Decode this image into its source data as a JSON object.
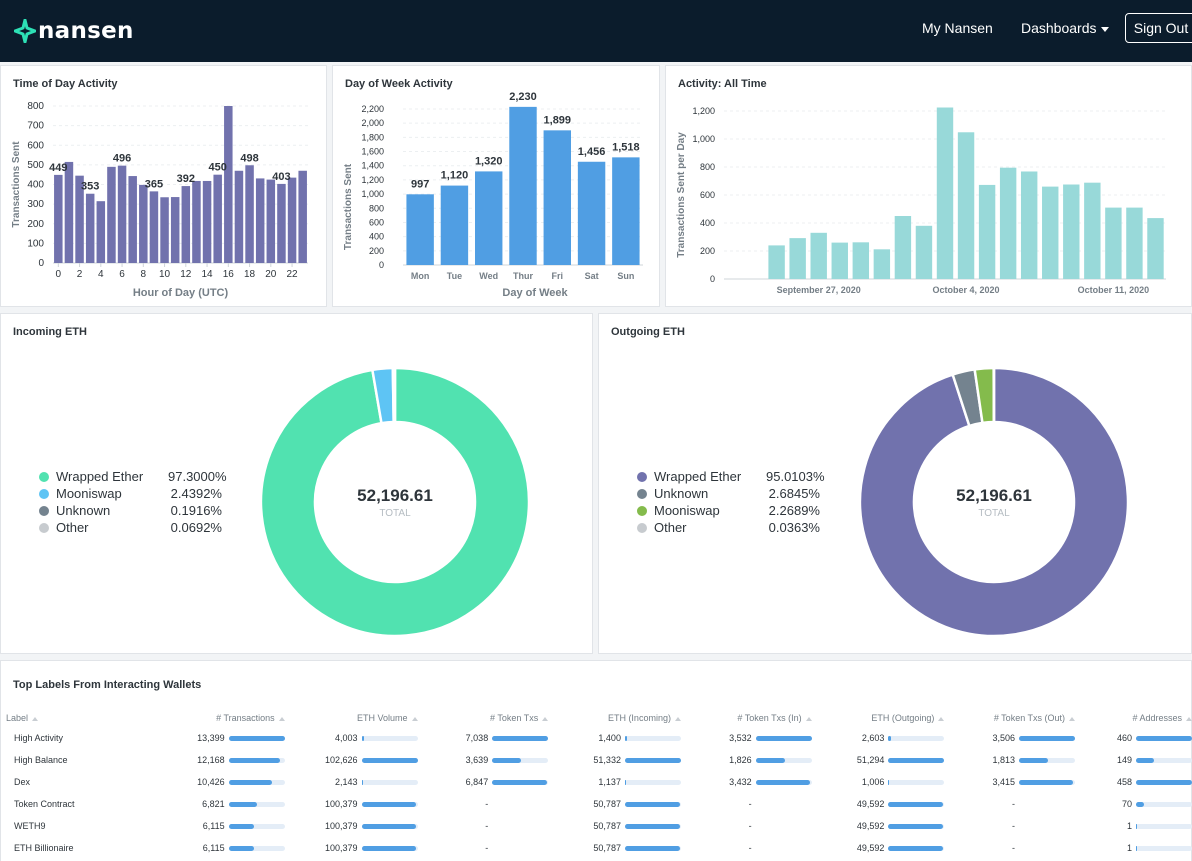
{
  "header": {
    "logo_text": "nansen",
    "nav": [
      {
        "label": "My Nansen"
      },
      {
        "label": "Dashboards"
      }
    ],
    "sign_out_label": "Sign Out"
  },
  "cards": {
    "time_of_day": {
      "title": "Time of Day Activity"
    },
    "day_of_week": {
      "title": "Day of Week Activity"
    },
    "all_time": {
      "title": "Activity: All Time"
    },
    "incoming": {
      "title": "Incoming ETH",
      "total": "52,196.61",
      "total_label": "TOTAL"
    },
    "outgoing": {
      "title": "Outgoing ETH",
      "total": "52,196.61",
      "total_label": "TOTAL"
    },
    "top_labels": {
      "title": "Top Labels From Interacting Wallets"
    }
  },
  "colors": {
    "purple": "#7172ad",
    "blue": "#509ee3",
    "teal": "#98d9d9",
    "green_mint": "#51e2b0",
    "sky": "#5ec4f4",
    "gray": "#74838f",
    "light_gray": "#c7cbcf",
    "lime": "#84bb4c"
  },
  "chart_data": [
    {
      "type": "bar",
      "title": "Time of Day Activity",
      "xlabel": "Hour of Day (UTC)",
      "ylabel": "Transactions Sent",
      "ylim": [
        0,
        800
      ],
      "yticks": [
        0,
        100,
        200,
        300,
        400,
        500,
        600,
        700,
        800
      ],
      "xticks": [
        0,
        2,
        4,
        6,
        8,
        10,
        12,
        14,
        16,
        18,
        20,
        22
      ],
      "categories": [
        0,
        1,
        2,
        3,
        4,
        5,
        6,
        7,
        8,
        9,
        10,
        11,
        12,
        13,
        14,
        15,
        16,
        17,
        18,
        19,
        20,
        21,
        22,
        23
      ],
      "values": [
        449,
        515,
        445,
        353,
        315,
        490,
        496,
        443,
        398,
        365,
        335,
        336,
        392,
        418,
        418,
        450,
        800,
        470,
        498,
        431,
        425,
        403,
        435,
        470
      ],
      "data_labels": {
        "0": "449",
        "3": "353",
        "6": "496",
        "9": "365",
        "12": "392",
        "15": "450",
        "18": "498",
        "21": "403"
      },
      "grid": true
    },
    {
      "type": "bar",
      "title": "Day of Week Activity",
      "xlabel": "Day of Week",
      "ylabel": "Transactions Sent",
      "ylim": [
        0,
        2200
      ],
      "yticks": [
        0,
        200,
        400,
        600,
        800,
        1000,
        1200,
        1400,
        1600,
        1800,
        2000,
        2200
      ],
      "ytick_labels": [
        "0",
        "200",
        "400",
        "600",
        "800",
        "1,000",
        "1,200",
        "1,400",
        "1,600",
        "1,800",
        "2,000",
        "2,200"
      ],
      "categories": [
        "Mon",
        "Tue",
        "Wed",
        "Thur",
        "Fri",
        "Sat",
        "Sun"
      ],
      "values": [
        997,
        1120,
        1320,
        2230,
        1899,
        1456,
        1518
      ],
      "data_labels": [
        "997",
        "1,120",
        "1,320",
        "2,230",
        "1,899",
        "1,456",
        "1,518"
      ],
      "grid": true
    },
    {
      "type": "bar",
      "title": "Activity: All Time",
      "ylabel": "Transactions Sent per Day",
      "ylim": [
        0,
        1200
      ],
      "yticks": [
        0,
        200,
        400,
        600,
        800,
        1000,
        1200
      ],
      "ytick_labels": [
        "0",
        "200",
        "400",
        "600",
        "800",
        "1,000",
        "1,200"
      ],
      "x": [
        "2020-09-25",
        "2020-09-26",
        "2020-09-27",
        "2020-09-28",
        "2020-09-29",
        "2020-09-30",
        "2020-10-01",
        "2020-10-02",
        "2020-10-03",
        "2020-10-04",
        "2020-10-05",
        "2020-10-06",
        "2020-10-07",
        "2020-10-08",
        "2020-10-09",
        "2020-10-10",
        "2020-10-11",
        "2020-10-12",
        "2020-10-13"
      ],
      "values": [
        240,
        292,
        330,
        260,
        262,
        212,
        450,
        380,
        1225,
        1048,
        672,
        795,
        768,
        660,
        675,
        688,
        510,
        510,
        435
      ],
      "xtick_labels": [
        {
          "date": "2020-09-27",
          "label": "September 27, 2020"
        },
        {
          "date": "2020-10-04",
          "label": "October 4, 2020"
        },
        {
          "date": "2020-10-11",
          "label": "October 11, 2020"
        }
      ],
      "grid": true
    },
    {
      "type": "pie",
      "title": "Incoming ETH",
      "labels": [
        "Wrapped Ether",
        "Mooniswap",
        "Unknown",
        "Other"
      ],
      "values": [
        97.3,
        2.4392,
        0.1916,
        0.0692
      ],
      "value_labels": [
        "97.3000%",
        "2.4392%",
        "0.1916%",
        "0.0692%"
      ],
      "colors": [
        "#51e2b0",
        "#5ec4f4",
        "#74838f",
        "#c7cbcf"
      ]
    },
    {
      "type": "pie",
      "title": "Outgoing ETH",
      "labels": [
        "Wrapped Ether",
        "Unknown",
        "Mooniswap",
        "Other"
      ],
      "values": [
        95.0103,
        2.6845,
        2.2689,
        0.0363
      ],
      "value_labels": [
        "95.0103%",
        "2.6845%",
        "2.2689%",
        "0.0363%"
      ],
      "colors": [
        "#7172ad",
        "#74838f",
        "#84bb4c",
        "#c7cbcf"
      ]
    }
  ],
  "table": {
    "columns": [
      "Label",
      "# Transactions",
      "ETH Volume",
      "# Token Txs",
      "ETH (Incoming)",
      "# Token Txs (In)",
      "ETH (Outgoing)",
      "# Token Txs (Out)",
      "# Addresses"
    ],
    "rows": [
      {
        "label": "High Activity",
        "cells": [
          [
            "13,399",
            1.0
          ],
          [
            "4,003",
            0.04
          ],
          [
            "7,038",
            1.0
          ],
          [
            "1,400",
            0.03
          ],
          [
            "3,532",
            1.0
          ],
          [
            "2,603",
            0.05
          ],
          [
            "3,506",
            1.0
          ],
          [
            "460",
            1.0
          ]
        ]
      },
      {
        "label": "High Balance",
        "cells": [
          [
            "12,168",
            0.91
          ],
          [
            "102,626",
            1.0
          ],
          [
            "3,639",
            0.52
          ],
          [
            "51,332",
            1.0
          ],
          [
            "1,826",
            0.52
          ],
          [
            "51,294",
            1.0
          ],
          [
            "1,813",
            0.52
          ],
          [
            "149",
            0.32
          ]
        ]
      },
      {
        "label": "Dex",
        "cells": [
          [
            "10,426",
            0.78
          ],
          [
            "2,143",
            0.02
          ],
          [
            "6,847",
            0.97
          ],
          [
            "1,137",
            0.02
          ],
          [
            "3,432",
            0.97
          ],
          [
            "1,006",
            0.02
          ],
          [
            "3,415",
            0.97
          ],
          [
            "458",
            1.0
          ]
        ]
      },
      {
        "label": "Token Contract",
        "cells": [
          [
            "6,821",
            0.51
          ],
          [
            "100,379",
            0.98
          ],
          [
            "-",
            null
          ],
          [
            "50,787",
            0.99
          ],
          [
            "-",
            null
          ],
          [
            "49,592",
            0.97
          ],
          [
            "-",
            null
          ],
          [
            "70",
            0.15
          ]
        ]
      },
      {
        "label": "WETH9",
        "cells": [
          [
            "6,115",
            0.46
          ],
          [
            "100,379",
            0.98
          ],
          [
            "-",
            null
          ],
          [
            "50,787",
            0.99
          ],
          [
            "-",
            null
          ],
          [
            "49,592",
            0.97
          ],
          [
            "-",
            null
          ],
          [
            "1",
            0.01
          ]
        ]
      },
      {
        "label": "ETH Billionaire",
        "cells": [
          [
            "6,115",
            0.46
          ],
          [
            "100,379",
            0.98
          ],
          [
            "-",
            null
          ],
          [
            "50,787",
            0.99
          ],
          [
            "-",
            null
          ],
          [
            "49,592",
            0.97
          ],
          [
            "-",
            null
          ],
          [
            "1",
            0.01
          ]
        ]
      }
    ]
  }
}
